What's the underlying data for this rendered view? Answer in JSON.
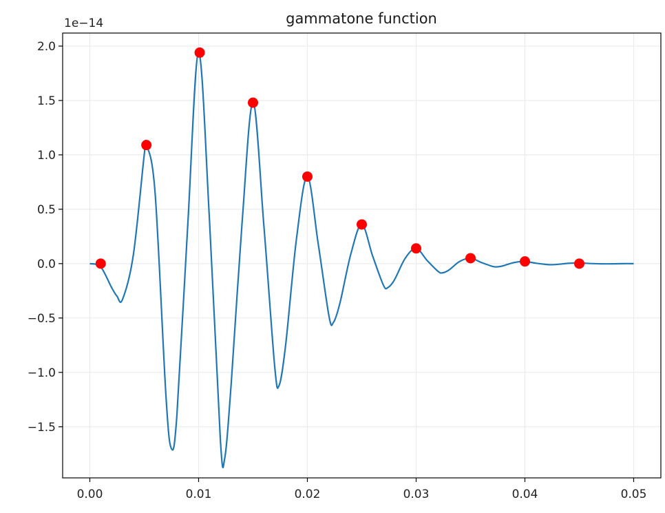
{
  "chart_data": {
    "type": "line",
    "title": "gammatone function",
    "y_offset_label": "1e−14",
    "xlim": [
      -0.0025,
      0.0525
    ],
    "ylim": [
      -1.97,
      2.12
    ],
    "x_ticks": [
      0.0,
      0.01,
      0.02,
      0.03,
      0.04,
      0.05
    ],
    "x_tick_labels": [
      "0.00",
      "0.01",
      "0.02",
      "0.03",
      "0.04",
      "0.05"
    ],
    "y_ticks": [
      2.0,
      1.5,
      1.0,
      0.5,
      0.0,
      -0.5,
      -1.0,
      -1.5
    ],
    "y_tick_labels": [
      "2.0",
      "1.5",
      "1.0",
      "0.5",
      "0.0",
      "−0.5",
      "−1.0",
      "−1.5"
    ],
    "grid": true,
    "colors": {
      "line": "#1f77b4",
      "markers": "#ff0000",
      "grid": "#ebebeb",
      "axes": "#000000"
    },
    "series": [
      {
        "type": "line",
        "x": [
          0.0,
          0.001,
          0.002,
          0.0025,
          0.003,
          0.004,
          0.005,
          0.0052,
          0.006,
          0.007,
          0.0075,
          0.008,
          0.009,
          0.01,
          0.011,
          0.012,
          0.0124,
          0.013,
          0.014,
          0.015,
          0.016,
          0.017,
          0.0174,
          0.018,
          0.019,
          0.02,
          0.021,
          0.022,
          0.0224,
          0.023,
          0.024,
          0.025,
          0.026,
          0.027,
          0.0274,
          0.028,
          0.029,
          0.03,
          0.031,
          0.032,
          0.0324,
          0.033,
          0.034,
          0.035,
          0.036,
          0.037,
          0.0374,
          0.038,
          0.039,
          0.04,
          0.041,
          0.042,
          0.0424,
          0.043,
          0.044,
          0.045,
          0.046,
          0.047,
          0.048,
          0.049,
          0.05
        ],
        "y": [
          0.0,
          -0.03,
          -0.22,
          -0.3,
          -0.33,
          0.08,
          1.0,
          1.09,
          0.65,
          -1.22,
          -1.7,
          -1.4,
          0.35,
          1.94,
          0.4,
          -1.62,
          -1.79,
          -1.1,
          0.38,
          1.48,
          0.35,
          -0.95,
          -1.12,
          -0.75,
          0.23,
          0.8,
          0.18,
          -0.49,
          -0.54,
          -0.36,
          0.09,
          0.36,
          0.07,
          -0.2,
          -0.22,
          -0.15,
          0.05,
          0.14,
          0.03,
          -0.07,
          -0.085,
          -0.06,
          0.02,
          0.05,
          0.01,
          -0.025,
          -0.03,
          -0.02,
          0.01,
          0.02,
          0.004,
          -0.008,
          -0.01,
          -0.007,
          0.003,
          0.006,
          0.001,
          -0.002,
          -0.002,
          0.0,
          0.0
        ]
      },
      {
        "type": "scatter",
        "x": [
          0.001,
          0.0052,
          0.0101,
          0.015,
          0.02,
          0.025,
          0.03,
          0.035,
          0.04,
          0.045
        ],
        "y": [
          0.0,
          1.09,
          1.94,
          1.48,
          0.8,
          0.36,
          0.14,
          0.05,
          0.02,
          0.0
        ]
      }
    ]
  }
}
